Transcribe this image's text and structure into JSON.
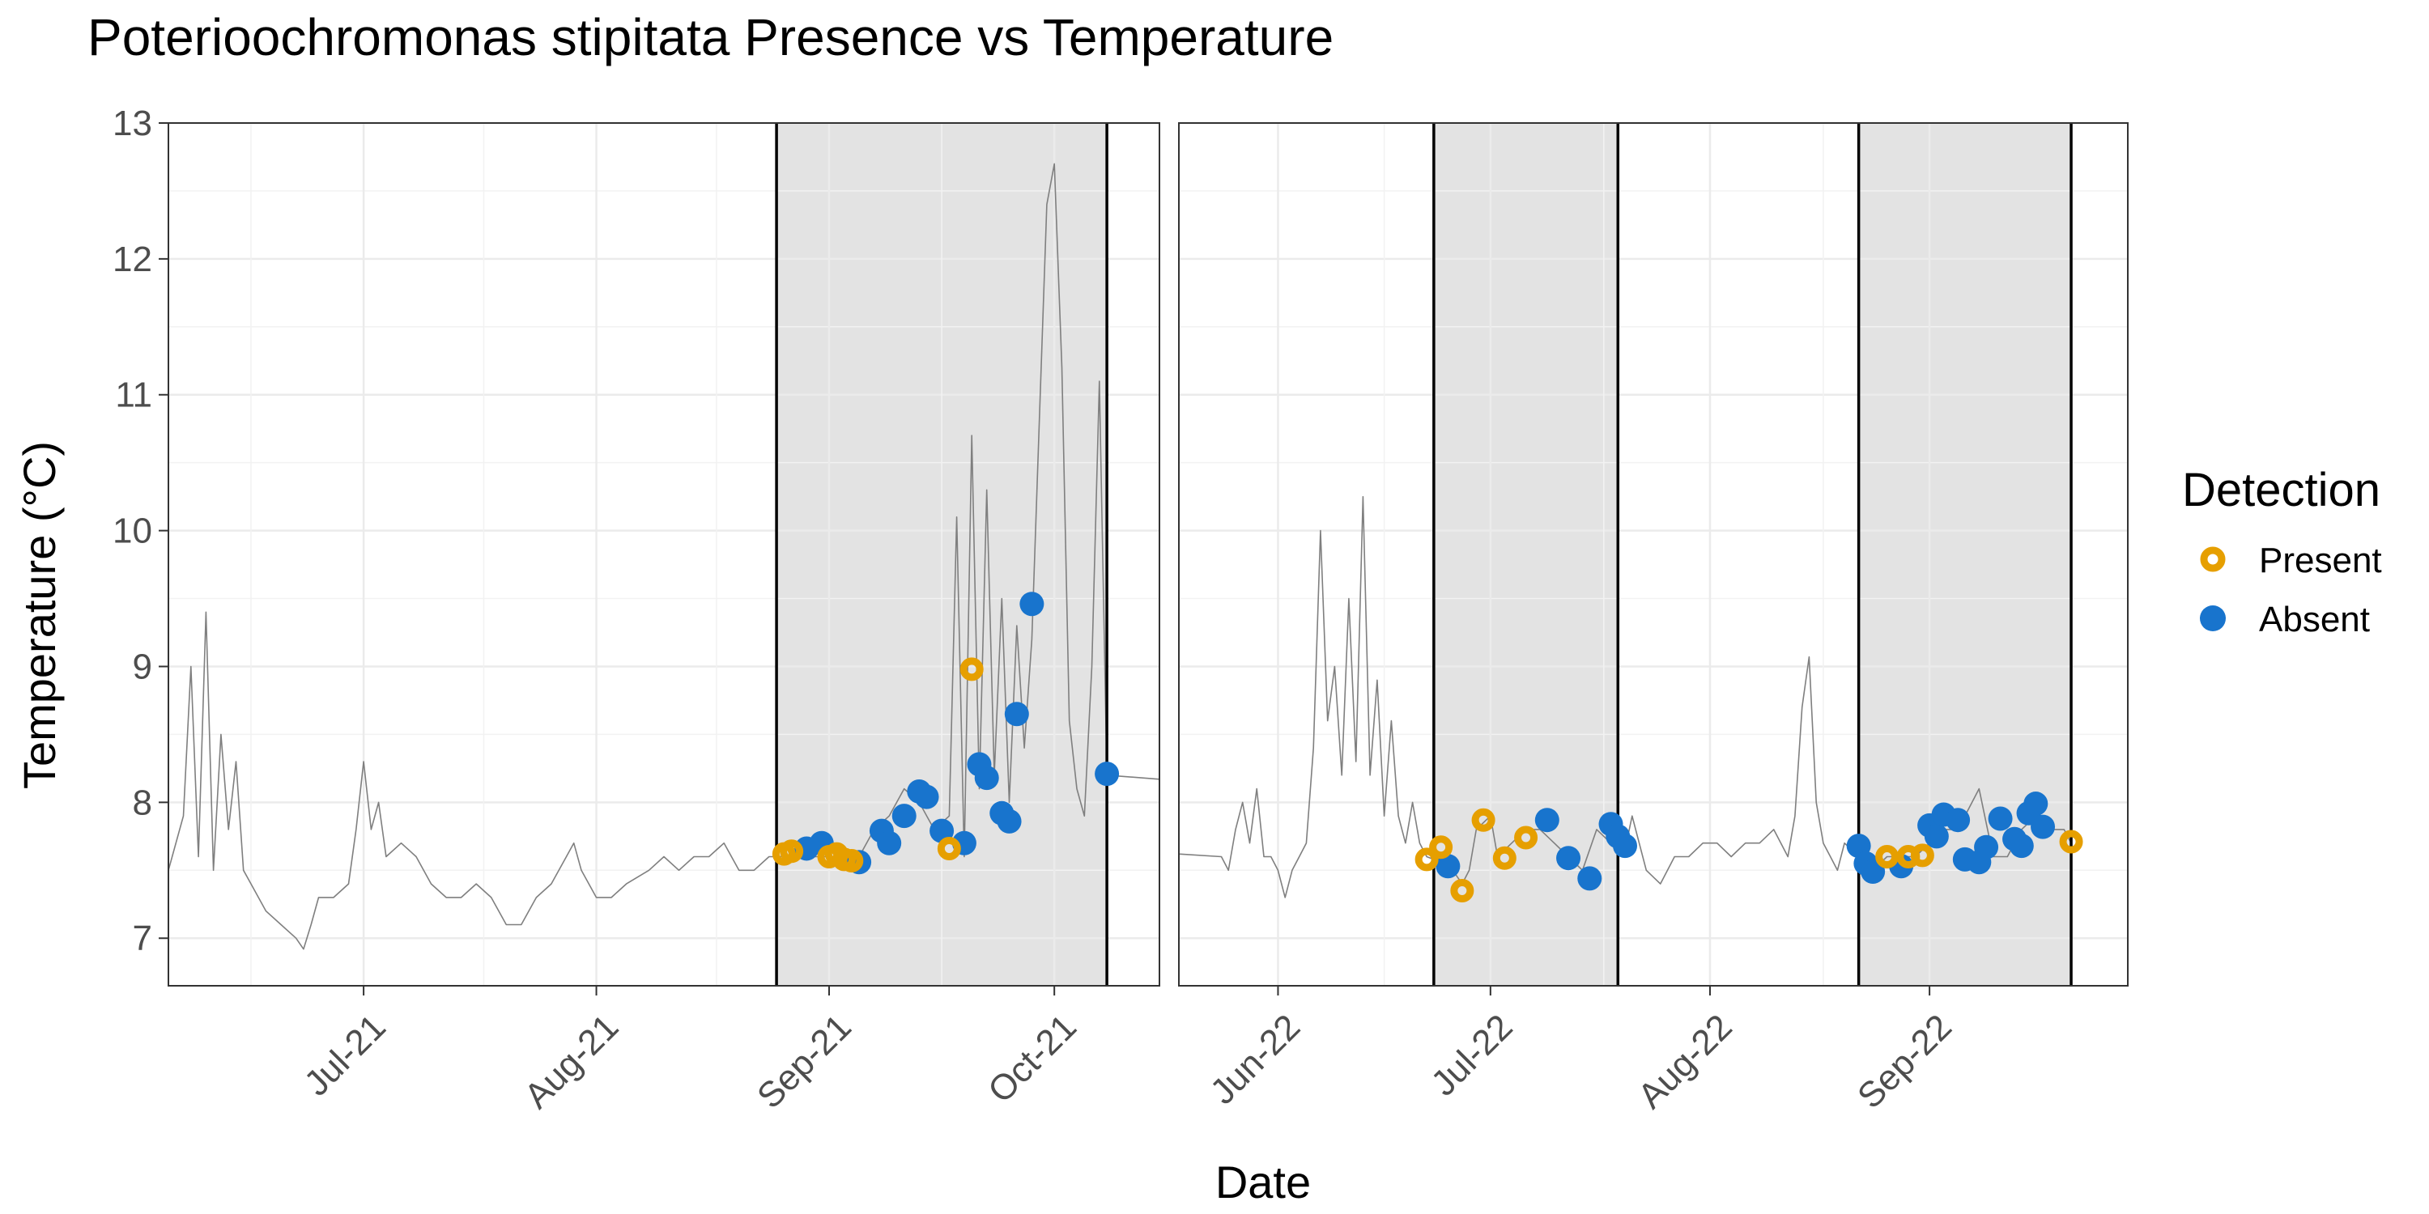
{
  "chart_data": {
    "type": "scatter",
    "title": "Poterioochromonas stipitata Presence vs Temperature",
    "xlabel": "Date",
    "ylabel": "Temperature (°C)",
    "ylim": [
      6.65,
      13.0
    ],
    "yticks": [
      7,
      8,
      9,
      10,
      11,
      12,
      13
    ],
    "grid": true,
    "legend": {
      "title": "Detection",
      "placement": "right",
      "entries": [
        {
          "label": "Present",
          "color": "#E69F00",
          "style": "hollow-circle"
        },
        {
          "label": "Absent",
          "color": "#1874CD",
          "style": "filled-circle"
        }
      ]
    },
    "colors": {
      "present": "#E69F00",
      "absent": "#1874CD",
      "temperature_line": "#7f7f7f",
      "sampling_band": "#e3e3e3"
    },
    "panels": [
      {
        "id": "2021",
        "xlim": [
          "2021-06-05",
          "2021-10-15"
        ],
        "xticks": [
          {
            "date": "2021-07-01",
            "label": "Jul-21"
          },
          {
            "date": "2021-08-01",
            "label": "Aug-21"
          },
          {
            "date": "2021-09-01",
            "label": "Sep-21"
          },
          {
            "date": "2021-10-01",
            "label": "Oct-21"
          }
        ],
        "sampling_period": [
          "2021-08-25",
          "2021-10-08"
        ],
        "temperature_trace": [
          [
            "2021-06-05",
            7.5
          ],
          [
            "2021-06-07",
            7.9
          ],
          [
            "2021-06-08",
            9.0
          ],
          [
            "2021-06-09",
            7.6
          ],
          [
            "2021-06-10",
            9.4
          ],
          [
            "2021-06-11",
            7.5
          ],
          [
            "2021-06-12",
            8.5
          ],
          [
            "2021-06-13",
            7.8
          ],
          [
            "2021-06-14",
            8.3
          ],
          [
            "2021-06-15",
            7.5
          ],
          [
            "2021-06-16",
            7.4
          ],
          [
            "2021-06-18",
            7.2
          ],
          [
            "2021-06-20",
            7.1
          ],
          [
            "2021-06-22",
            7.0
          ],
          [
            "2021-06-23",
            6.92
          ],
          [
            "2021-06-24",
            7.1
          ],
          [
            "2021-06-25",
            7.3
          ],
          [
            "2021-06-27",
            7.3
          ],
          [
            "2021-06-29",
            7.4
          ],
          [
            "2021-06-30",
            7.8
          ],
          [
            "2021-07-01",
            8.3
          ],
          [
            "2021-07-02",
            7.8
          ],
          [
            "2021-07-03",
            8.0
          ],
          [
            "2021-07-04",
            7.6
          ],
          [
            "2021-07-06",
            7.7
          ],
          [
            "2021-07-08",
            7.6
          ],
          [
            "2021-07-10",
            7.4
          ],
          [
            "2021-07-12",
            7.3
          ],
          [
            "2021-07-14",
            7.3
          ],
          [
            "2021-07-16",
            7.4
          ],
          [
            "2021-07-18",
            7.3
          ],
          [
            "2021-07-20",
            7.1
          ],
          [
            "2021-07-22",
            7.1
          ],
          [
            "2021-07-24",
            7.3
          ],
          [
            "2021-07-26",
            7.4
          ],
          [
            "2021-07-28",
            7.6
          ],
          [
            "2021-07-29",
            7.7
          ],
          [
            "2021-07-30",
            7.5
          ],
          [
            "2021-08-01",
            7.3
          ],
          [
            "2021-08-03",
            7.3
          ],
          [
            "2021-08-05",
            7.4
          ],
          [
            "2021-08-08",
            7.5
          ],
          [
            "2021-08-10",
            7.6
          ],
          [
            "2021-08-12",
            7.5
          ],
          [
            "2021-08-14",
            7.6
          ],
          [
            "2021-08-16",
            7.6
          ],
          [
            "2021-08-18",
            7.7
          ],
          [
            "2021-08-20",
            7.5
          ],
          [
            "2021-08-22",
            7.5
          ],
          [
            "2021-08-24",
            7.6
          ],
          [
            "2021-08-26",
            7.6
          ],
          [
            "2021-08-28",
            7.6
          ],
          [
            "2021-08-30",
            7.6
          ],
          [
            "2021-09-01",
            7.6
          ],
          [
            "2021-09-03",
            7.6
          ],
          [
            "2021-09-05",
            7.6
          ],
          [
            "2021-09-07",
            7.8
          ],
          [
            "2021-09-09",
            7.9
          ],
          [
            "2021-09-11",
            8.1
          ],
          [
            "2021-09-13",
            8.0
          ],
          [
            "2021-09-15",
            7.8
          ],
          [
            "2021-09-17",
            7.9
          ],
          [
            "2021-09-18",
            10.1
          ],
          [
            "2021-09-19",
            7.6
          ],
          [
            "2021-09-20",
            10.7
          ],
          [
            "2021-09-21",
            8.1
          ],
          [
            "2021-09-22",
            10.3
          ],
          [
            "2021-09-23",
            8.2
          ],
          [
            "2021-09-24",
            9.5
          ],
          [
            "2021-09-25",
            8.0
          ],
          [
            "2021-09-26",
            9.3
          ],
          [
            "2021-09-27",
            8.4
          ],
          [
            "2021-09-28",
            9.2
          ],
          [
            "2021-09-29",
            10.8
          ],
          [
            "2021-09-30",
            12.4
          ],
          [
            "2021-10-01",
            12.7
          ],
          [
            "2021-10-02",
            11.2
          ],
          [
            "2021-10-03",
            8.6
          ],
          [
            "2021-10-04",
            8.1
          ],
          [
            "2021-10-05",
            7.9
          ],
          [
            "2021-10-06",
            9.0
          ],
          [
            "2021-10-07",
            11.1
          ],
          [
            "2021-10-08",
            8.2
          ],
          [
            "2021-10-15",
            8.17
          ]
        ],
        "present": [
          [
            "2021-08-26",
            7.62
          ],
          [
            "2021-08-27",
            7.64
          ],
          [
            "2021-09-01",
            7.6
          ],
          [
            "2021-09-02",
            7.62
          ],
          [
            "2021-09-03",
            7.58
          ],
          [
            "2021-09-04",
            7.57
          ],
          [
            "2021-09-17",
            7.66
          ],
          [
            "2021-09-20",
            8.98
          ]
        ],
        "absent": [
          [
            "2021-08-29",
            7.66
          ],
          [
            "2021-08-31",
            7.7
          ],
          [
            "2021-09-05",
            7.56
          ],
          [
            "2021-09-08",
            7.79
          ],
          [
            "2021-09-09",
            7.7
          ],
          [
            "2021-09-11",
            7.9
          ],
          [
            "2021-09-13",
            8.08
          ],
          [
            "2021-09-14",
            8.04
          ],
          [
            "2021-09-16",
            7.79
          ],
          [
            "2021-09-19",
            7.7
          ],
          [
            "2021-09-21",
            8.28
          ],
          [
            "2021-09-22",
            8.18
          ],
          [
            "2021-09-24",
            7.92
          ],
          [
            "2021-09-25",
            7.86
          ],
          [
            "2021-09-26",
            8.65
          ],
          [
            "2021-09-28",
            9.46
          ],
          [
            "2021-10-08",
            8.21
          ]
        ]
      },
      {
        "id": "2022",
        "xlim": [
          "2022-05-18",
          "2022-09-29"
        ],
        "xticks": [
          {
            "date": "2022-06-01",
            "label": "Jun-22"
          },
          {
            "date": "2022-07-01",
            "label": "Jul-22"
          },
          {
            "date": "2022-08-01",
            "label": "Aug-22"
          },
          {
            "date": "2022-09-01",
            "label": "Sep-22"
          }
        ],
        "sampling_periods": [
          [
            "2022-06-23",
            "2022-07-19"
          ],
          [
            "2022-08-22",
            "2022-09-21"
          ]
        ],
        "temperature_trace": [
          [
            "2022-05-18",
            7.62
          ],
          [
            "2022-05-24",
            7.6
          ],
          [
            "2022-05-25",
            7.5
          ],
          [
            "2022-05-26",
            7.8
          ],
          [
            "2022-05-27",
            8.0
          ],
          [
            "2022-05-28",
            7.7
          ],
          [
            "2022-05-29",
            8.1
          ],
          [
            "2022-05-30",
            7.6
          ],
          [
            "2022-05-31",
            7.6
          ],
          [
            "2022-06-01",
            7.5
          ],
          [
            "2022-06-02",
            7.3
          ],
          [
            "2022-06-03",
            7.5
          ],
          [
            "2022-06-04",
            7.6
          ],
          [
            "2022-06-05",
            7.7
          ],
          [
            "2022-06-06",
            8.4
          ],
          [
            "2022-06-07",
            10.0
          ],
          [
            "2022-06-08",
            8.6
          ],
          [
            "2022-06-09",
            9.0
          ],
          [
            "2022-06-10",
            8.2
          ],
          [
            "2022-06-11",
            9.5
          ],
          [
            "2022-06-12",
            8.3
          ],
          [
            "2022-06-13",
            10.25
          ],
          [
            "2022-06-14",
            8.2
          ],
          [
            "2022-06-15",
            8.9
          ],
          [
            "2022-06-16",
            7.9
          ],
          [
            "2022-06-17",
            8.6
          ],
          [
            "2022-06-18",
            7.9
          ],
          [
            "2022-06-19",
            7.7
          ],
          [
            "2022-06-20",
            8.0
          ],
          [
            "2022-06-21",
            7.7
          ],
          [
            "2022-06-22",
            7.6
          ],
          [
            "2022-06-23",
            7.58
          ],
          [
            "2022-06-25",
            7.55
          ],
          [
            "2022-06-27",
            7.4
          ],
          [
            "2022-06-28",
            7.5
          ],
          [
            "2022-06-29",
            7.8
          ],
          [
            "2022-07-01",
            7.9
          ],
          [
            "2022-07-02",
            7.6
          ],
          [
            "2022-07-04",
            7.7
          ],
          [
            "2022-07-06",
            7.8
          ],
          [
            "2022-07-08",
            7.8
          ],
          [
            "2022-07-10",
            7.7
          ],
          [
            "2022-07-12",
            7.6
          ],
          [
            "2022-07-14",
            7.5
          ],
          [
            "2022-07-16",
            7.8
          ],
          [
            "2022-07-18",
            7.7
          ],
          [
            "2022-07-20",
            7.65
          ],
          [
            "2022-07-21",
            7.9
          ],
          [
            "2022-07-23",
            7.5
          ],
          [
            "2022-07-25",
            7.4
          ],
          [
            "2022-07-27",
            7.6
          ],
          [
            "2022-07-29",
            7.6
          ],
          [
            "2022-07-31",
            7.7
          ],
          [
            "2022-08-02",
            7.7
          ],
          [
            "2022-08-04",
            7.6
          ],
          [
            "2022-08-06",
            7.7
          ],
          [
            "2022-08-08",
            7.7
          ],
          [
            "2022-08-10",
            7.8
          ],
          [
            "2022-08-12",
            7.6
          ],
          [
            "2022-08-13",
            7.9
          ],
          [
            "2022-08-14",
            8.7
          ],
          [
            "2022-08-15",
            9.07
          ],
          [
            "2022-08-16",
            8.0
          ],
          [
            "2022-08-17",
            7.7
          ],
          [
            "2022-08-18",
            7.6
          ],
          [
            "2022-08-19",
            7.5
          ],
          [
            "2022-08-20",
            7.7
          ],
          [
            "2022-08-22",
            7.6
          ],
          [
            "2022-08-24",
            7.5
          ],
          [
            "2022-08-26",
            7.6
          ],
          [
            "2022-08-28",
            7.6
          ],
          [
            "2022-08-30",
            7.6
          ],
          [
            "2022-09-01",
            7.7
          ],
          [
            "2022-09-03",
            7.8
          ],
          [
            "2022-09-05",
            7.8
          ],
          [
            "2022-09-07",
            8.0
          ],
          [
            "2022-09-08",
            8.1
          ],
          [
            "2022-09-10",
            7.6
          ],
          [
            "2022-09-12",
            7.6
          ],
          [
            "2022-09-14",
            7.8
          ],
          [
            "2022-09-16",
            7.9
          ],
          [
            "2022-09-18",
            7.8
          ],
          [
            "2022-09-20",
            7.8
          ],
          [
            "2022-09-21",
            7.7
          ]
        ],
        "present": [
          [
            "2022-06-22",
            7.58
          ],
          [
            "2022-06-24",
            7.67
          ],
          [
            "2022-06-27",
            7.35
          ],
          [
            "2022-06-30",
            7.87
          ],
          [
            "2022-07-03",
            7.59
          ],
          [
            "2022-07-06",
            7.74
          ],
          [
            "2022-08-26",
            7.6
          ],
          [
            "2022-08-29",
            7.6
          ],
          [
            "2022-08-31",
            7.61
          ],
          [
            "2022-09-21",
            7.71
          ]
        ],
        "absent": [
          [
            "2022-06-25",
            7.53
          ],
          [
            "2022-07-09",
            7.87
          ],
          [
            "2022-07-12",
            7.59
          ],
          [
            "2022-07-15",
            7.44
          ],
          [
            "2022-07-18",
            7.84
          ],
          [
            "2022-07-19",
            7.75
          ],
          [
            "2022-07-20",
            7.68
          ],
          [
            "2022-08-22",
            7.68
          ],
          [
            "2022-08-23",
            7.55
          ],
          [
            "2022-08-24",
            7.49
          ],
          [
            "2022-08-28",
            7.53
          ],
          [
            "2022-09-01",
            7.83
          ],
          [
            "2022-09-02",
            7.75
          ],
          [
            "2022-09-03",
            7.91
          ],
          [
            "2022-09-05",
            7.87
          ],
          [
            "2022-09-06",
            7.58
          ],
          [
            "2022-09-08",
            7.56
          ],
          [
            "2022-09-09",
            7.67
          ],
          [
            "2022-09-11",
            7.88
          ],
          [
            "2022-09-13",
            7.73
          ],
          [
            "2022-09-14",
            7.68
          ],
          [
            "2022-09-15",
            7.92
          ],
          [
            "2022-09-16",
            7.99
          ],
          [
            "2022-09-17",
            7.82
          ]
        ]
      }
    ]
  }
}
